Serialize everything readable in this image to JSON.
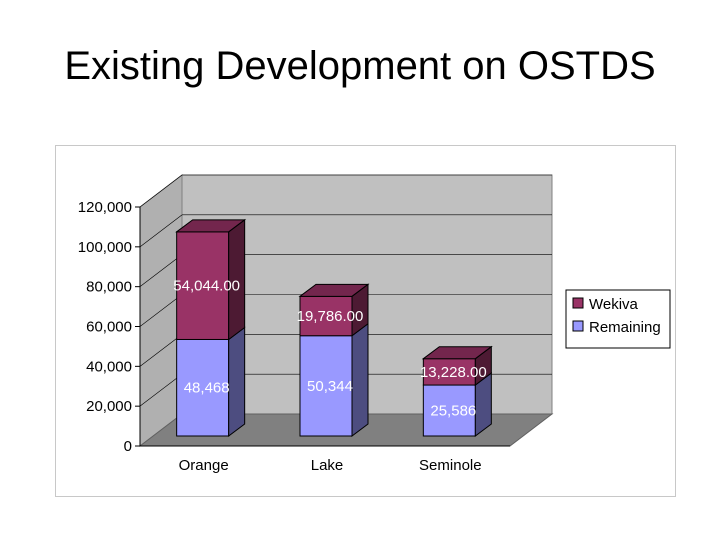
{
  "slide": {
    "title": "Existing Development on OSTDS"
  },
  "chart_data": {
    "type": "bar",
    "stacked": true,
    "three_d": true,
    "categories": [
      "Orange",
      "Lake",
      "Seminole"
    ],
    "series": [
      {
        "name": "Remaining",
        "values": [
          48468,
          50344,
          25586
        ],
        "labels": [
          "48,468",
          "50,344",
          "25,586"
        ],
        "color": "#9999ff"
      },
      {
        "name": "Wekiva",
        "values": [
          54044,
          19786,
          13228
        ],
        "labels": [
          "54,044.00",
          "19,786.00",
          "13,228.00"
        ],
        "color": "#993366"
      }
    ],
    "yticks": [
      "0",
      "20,000",
      "40,000",
      "60,000",
      "80,000",
      "100,000",
      "120,000"
    ],
    "ylim": [
      0,
      120000
    ],
    "grid": true,
    "wall_color": "#c0c0c0",
    "floor_color": "#808080",
    "legend_position": "right"
  }
}
